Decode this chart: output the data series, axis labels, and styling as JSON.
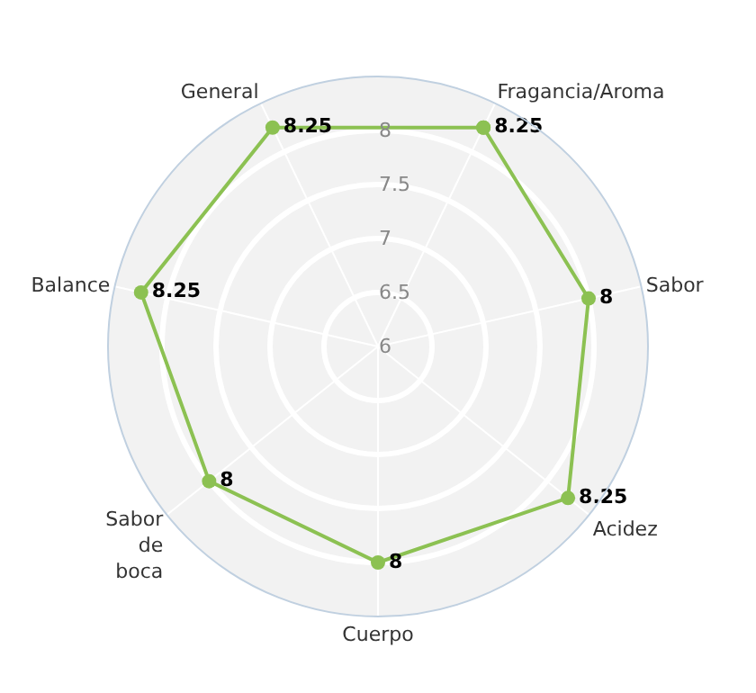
{
  "chart_data": {
    "type": "radar",
    "categories": [
      "Fragancia/Aroma",
      "Sabor",
      "Acidez",
      "Cuerpo",
      "Sabor de boca",
      "Balance",
      "General"
    ],
    "series": [
      {
        "color": "#8cc152",
        "values": [
          8.25,
          8,
          8.25,
          8,
          8,
          8.25,
          8.25
        ]
      }
    ],
    "ylim": [
      6,
      8.5
    ],
    "yticks": [
      6,
      6.5,
      7,
      7.5,
      8
    ],
    "data_labels": true,
    "marker": "circle",
    "grid": true
  }
}
